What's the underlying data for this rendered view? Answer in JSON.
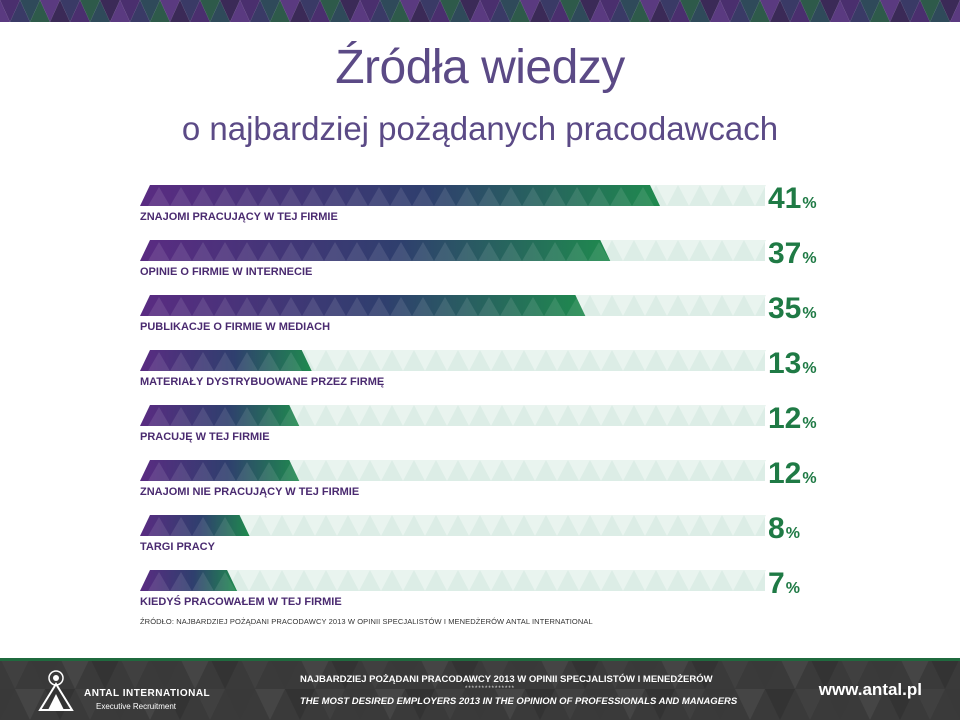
{
  "colors": {
    "title": "#5b4a86",
    "purple": "#5a2b82",
    "navy": "#2f3f6e",
    "green": "#1f8a4e",
    "track": "#dcede6",
    "value": "#1f7a45",
    "label": "#4a2a70",
    "footer_bg": "#3a3a3a"
  },
  "header": {
    "title": "Źródła wiedzy",
    "subtitle": "o najbardziej pożądanych pracodawcach"
  },
  "chart_data": {
    "type": "bar",
    "orientation": "horizontal",
    "title": "Źródła wiedzy",
    "subtitle": "o najbardziej pożądanych pracodawcach",
    "unit": "%",
    "categories": [
      "ZNAJOMI PRACUJĄCY W TEJ FIRMIE",
      "OPINIE O FIRMIE W INTERNECIE",
      "PUBLIKACJE O FIRMIE W MEDIACH",
      "MATERIAŁY DYSTRYBUOWANE PRZEZ FIRMĘ",
      "PRACUJĘ W TEJ FIRMIE",
      "ZNAJOMI NIE PRACUJĄCY W TEJ FIRMIE",
      "TARGI PRACY",
      "KIEDYŚ PRACOWAŁEM W TEJ FIRMIE"
    ],
    "values": [
      41,
      37,
      35,
      13,
      12,
      12,
      8,
      7
    ],
    "value_labels": [
      "41",
      "37",
      "35",
      "13",
      "12",
      "12",
      "8",
      "7"
    ],
    "percent_sign": "%",
    "xlim": [
      0,
      50
    ],
    "grid": false,
    "legend": "none"
  },
  "source": {
    "text": "ŹRÓDŁO: NAJBARDZIEJ POŻĄDANI PRACODAWCY 2013 W OPINII SPECJALISTÓW I MENEDŻERÓW  ANTAL INTERNATIONAL"
  },
  "footer": {
    "brand_name": "ANTAL INTERNATIONAL",
    "brand_sub": "Executive Recruitment",
    "line1": "NAJBARDZIEJ POŻĄDANI PRACODAWCY 2013 W OPINII SPECJALISTÓW I MENEDŻERÓW",
    "stars": "***************",
    "line2": "THE MOST DESIRED EMPLOYERS 2013 IN THE OPINION OF PROFESSIONALS AND MANAGERS",
    "url": "www.antal.pl"
  }
}
